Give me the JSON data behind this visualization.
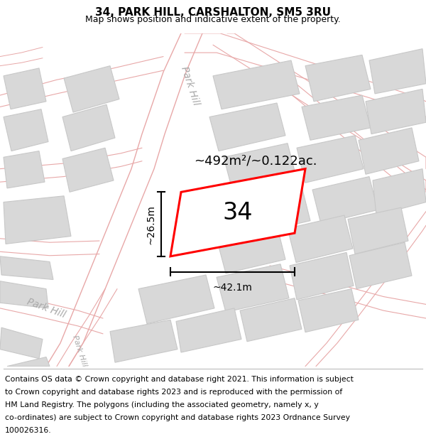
{
  "title": "34, PARK HILL, CARSHALTON, SM5 3RU",
  "subtitle": "Map shows position and indicative extent of the property.",
  "footer_lines": [
    "Contains OS data © Crown copyright and database right 2021. This information is subject",
    "to Crown copyright and database rights 2023 and is reproduced with the permission of",
    "HM Land Registry. The polygons (including the associated geometry, namely x, y",
    "co-ordinates) are subject to Crown copyright and database rights 2023 Ordnance Survey",
    "100026316."
  ],
  "area_label": "~492m²/~0.122ac.",
  "number_label": "34",
  "width_label": "~42.1m",
  "height_label": "~26.5m",
  "map_bg": "#ffffff",
  "road_line_color": "#e8a8a8",
  "block_fill": "#d8d8d8",
  "block_stroke": "#c8c8c8",
  "highlight_fill": "#ffffff",
  "highlight_stroke": "#ff0000",
  "street_label_color": "#aaaaaa",
  "title_fontsize": 11,
  "subtitle_fontsize": 9,
  "footer_fontsize": 7.8,
  "area_fontsize": 13,
  "number_fontsize": 24,
  "dim_fontsize": 10,
  "street_fontsize": 10
}
